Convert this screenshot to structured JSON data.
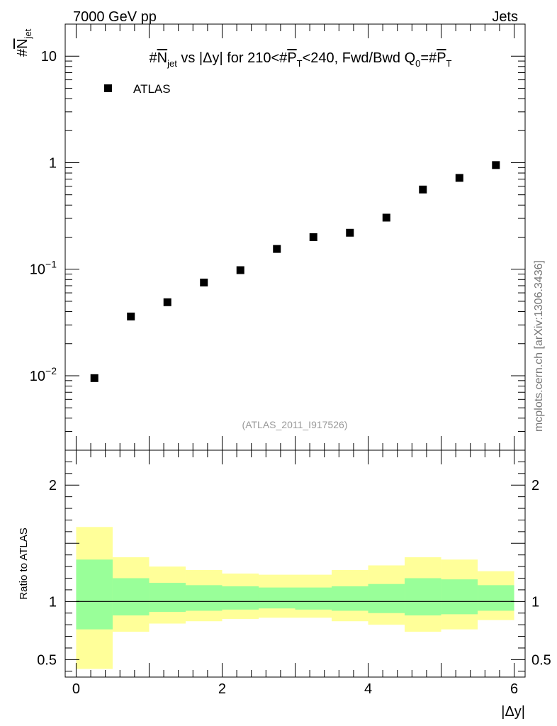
{
  "header": {
    "energy_label": "7000 GeV pp",
    "category_label": "Jets",
    "side_label": "mcplots.cern.ch [arXiv:1306.3436]",
    "analysis_label": "(ATLAS_2011_I917526)"
  },
  "chart_data": [
    {
      "type": "scatter",
      "title_parts": {
        "hash1": "#",
        "njet_N": "N",
        "njet_sub": "jet",
        "mid": " vs |Δy|  for 210<#",
        "pt_P": "P",
        "pt_sub": "T",
        "tail1": "<240, Fwd/Bwd Q",
        "q_sub": "0",
        "tail2": "=#",
        "pt2_P": "P",
        "pt2_sub": "T"
      },
      "ylabel_parts": {
        "hash": "#",
        "N": "N",
        "sub": "jet"
      },
      "yscale": "log",
      "ylim": [
        0.002,
        20
      ],
      "xlim": [
        -0.15,
        6.15
      ],
      "y_ticks": [
        {
          "value": 0.01,
          "base": "10",
          "exp": "−2"
        },
        {
          "value": 0.1,
          "base": "10",
          "exp": "−1"
        },
        {
          "value": 1,
          "base": "1",
          "exp": ""
        },
        {
          "value": 10,
          "base": "10",
          "exp": ""
        }
      ],
      "legend": {
        "position": "top-left",
        "entries": [
          "ATLAS"
        ]
      },
      "series": [
        {
          "name": "ATLAS",
          "marker": "square",
          "color": "#000000",
          "x": [
            0.25,
            0.75,
            1.25,
            1.75,
            2.25,
            2.75,
            3.25,
            3.75,
            4.25,
            4.75,
            5.25,
            5.75
          ],
          "y": [
            0.0095,
            0.036,
            0.049,
            0.075,
            0.098,
            0.155,
            0.2,
            0.22,
            0.305,
            0.56,
            0.72,
            0.95
          ]
        }
      ]
    },
    {
      "type": "area",
      "ylabel": "Ratio to ATLAS",
      "xlabel": "|Δy|",
      "ylim": [
        0.35,
        2.3
      ],
      "xlim": [
        -0.15,
        6.15
      ],
      "x_ticks": [
        0,
        2,
        4,
        6
      ],
      "y_ticks": [
        0.5,
        1,
        2
      ],
      "reference_line": 1,
      "colors": {
        "outer_band": "#ffff99",
        "inner_band": "#99ff99",
        "line": "#000000"
      },
      "bins": {
        "edges": [
          0,
          0.5,
          1,
          1.5,
          2,
          2.5,
          3,
          3.5,
          4,
          4.5,
          5,
          5.5,
          6
        ],
        "outer_low": [
          0.42,
          0.74,
          0.81,
          0.83,
          0.85,
          0.86,
          0.86,
          0.83,
          0.8,
          0.74,
          0.76,
          0.84
        ],
        "outer_high": [
          1.64,
          1.38,
          1.3,
          1.27,
          1.24,
          1.23,
          1.23,
          1.27,
          1.31,
          1.38,
          1.36,
          1.26
        ],
        "inner_low": [
          0.76,
          0.88,
          0.91,
          0.92,
          0.93,
          0.94,
          0.93,
          0.92,
          0.9,
          0.88,
          0.89,
          0.92
        ],
        "inner_high": [
          1.36,
          1.2,
          1.16,
          1.14,
          1.13,
          1.12,
          1.12,
          1.13,
          1.15,
          1.2,
          1.19,
          1.14
        ]
      }
    }
  ]
}
